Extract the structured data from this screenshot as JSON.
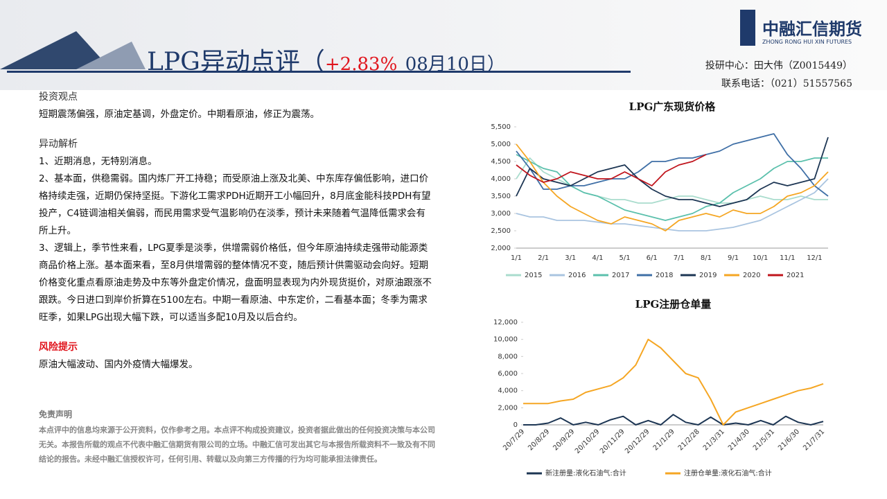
{
  "header": {
    "title": "LPG异动点评（",
    "change": "+2.83%",
    "date": "08月10日）",
    "logo_name": "中融汇信期货",
    "logo_sub": "ZHONG RONG HUI XIN FUTURES",
    "contact_1": "投研中心：田大伟（Z0015449）",
    "contact_2": "联系电话：（021）51557565"
  },
  "sections": [
    {
      "heading": "投资观点",
      "paragraphs": [
        "短期震荡偏强，原油定基调，外盘定价。中期看原油，修正为震荡。"
      ]
    },
    {
      "heading": "异动解析",
      "paragraphs": [
        "1、近期消息，无特别消息。",
        "2、基本面，供稳需弱。国内炼厂开工持稳；而受原油上涨及北美、中东库存偏低影响，进口价格持续走强，近期仍保持坚挺。下游化工需求PDH近期开工小幅回升，8月底金能科技PDH有望投产，C4链调油相关偏弱，而民用需求受气温影响仍在淡季，预计未来随着气温降低需求会有所上升。",
        "3、逻辑上，季节性来看，LPG夏季是淡季，供增需弱价格低，但今年原油持续走强带动能源类商品价格上涨。基本面来看，至8月供增需弱的整体情况不变，随后预计供需驱动会向好。短期价格变化重点看原油走势及中东等外盘定价情况，盘面明显表现为内外现货挺价，对原油跟涨不跟跌。今日进口到岸价折算在5100左右。中期一看原油、中东定价，二看基本面；冬季为需求旺季，如果LPG出现大幅下跌，可以适当多配10月及以后合约。"
      ]
    },
    {
      "heading": "风险提示",
      "paragraphs": [
        "原油大幅波动、国内外疫情大幅爆发。"
      ]
    }
  ],
  "disclaimer": {
    "heading": "免责声明",
    "text": "本点评中的信息均来源于公开资料，仅作参考之用。本点评不构成投资建议，投资者据此做出的任何投资决策与本公司无关。本报告所载的观点不代表中融汇信期货有限公司的立场。中融汇信可发出其它与本报告所载资料不一致及有不同结论的报告。未经中融汇信授权许可，任何引用、转载以及向第三方传播的行为均可能承担法律责任。"
  },
  "chart_data": [
    {
      "type": "line",
      "title": "LPG广东现货价格",
      "categories": [
        "1/1",
        null,
        "2/1",
        null,
        "3/1",
        null,
        "4/1",
        null,
        "5/1",
        null,
        "6/1",
        null,
        "7/1",
        null,
        "8/1",
        null,
        "9/1",
        null,
        "10/1",
        null,
        "11/1",
        null,
        "12/1",
        null
      ],
      "ylim": [
        2000,
        5500
      ],
      "yticks": [
        {
          "value": 2000,
          "label": "2,000"
        },
        {
          "value": 2500,
          "label": "2,500"
        },
        {
          "value": 3000,
          "label": "3,000"
        },
        {
          "value": 3500,
          "label": "3,500"
        },
        {
          "value": 4000,
          "label": "4,000"
        },
        {
          "value": 4500,
          "label": "4,500"
        },
        {
          "value": 5000,
          "label": "5,000"
        },
        {
          "value": 5500,
          "label": "5,500"
        }
      ],
      "grid": false,
      "series": [
        {
          "name": "2015",
          "color": "#a9dccd",
          "values": [
            4000,
            4600,
            4200,
            4000,
            3800,
            3600,
            3500,
            3400,
            3400,
            3300,
            3300,
            3400,
            3500,
            3500,
            3400,
            3300,
            3300,
            3400,
            3500,
            3400,
            3400,
            3500,
            3400,
            3400
          ]
        },
        {
          "name": "2016",
          "color": "#a9c4e0",
          "values": [
            3000,
            2900,
            2900,
            2800,
            2800,
            2800,
            2750,
            2700,
            2700,
            2650,
            2600,
            2550,
            2500,
            2500,
            2500,
            2550,
            2600,
            2700,
            2800,
            3000,
            3200,
            3400,
            3600,
            4000
          ]
        },
        {
          "name": "2017",
          "color": "#5bc0ac",
          "values": [
            4700,
            4500,
            4300,
            4200,
            3800,
            3600,
            3500,
            3300,
            3100,
            3000,
            2900,
            2800,
            2900,
            3000,
            3200,
            3300,
            3600,
            3800,
            4000,
            4300,
            4500,
            4500,
            4600,
            4600
          ]
        },
        {
          "name": "2018",
          "color": "#3f6fa6",
          "values": [
            4800,
            4300,
            3700,
            3700,
            3800,
            3800,
            3900,
            4000,
            4000,
            4200,
            4500,
            4500,
            4600,
            4600,
            4700,
            4800,
            5000,
            5100,
            5200,
            5300,
            4700,
            4300,
            3800,
            3500
          ]
        },
        {
          "name": "2019",
          "color": "#1c3553",
          "values": [
            3500,
            4300,
            4000,
            3900,
            3800,
            4000,
            4200,
            4300,
            4400,
            4000,
            3700,
            3500,
            3400,
            3400,
            3300,
            3200,
            3300,
            3400,
            3700,
            3900,
            3800,
            3900,
            4000,
            5200
          ]
        },
        {
          "name": "2020",
          "color": "#f5a623",
          "values": [
            5000,
            4500,
            3900,
            3500,
            3200,
            3000,
            2800,
            2700,
            2900,
            2800,
            2700,
            2500,
            2800,
            2900,
            3000,
            2900,
            3100,
            3000,
            3000,
            3200,
            3500,
            3600,
            3800,
            4200
          ]
        },
        {
          "name": "2021",
          "color": "#c0141c",
          "values": [
            4400,
            4100,
            3900,
            4000,
            4200,
            4100,
            4000,
            4000,
            4200,
            4000,
            3800,
            4200,
            4400,
            4500,
            4700,
            null,
            null,
            null,
            null,
            null,
            null,
            null,
            null,
            null
          ]
        }
      ]
    },
    {
      "type": "line",
      "title": "LPG注册仓单量",
      "categories": [
        "20/7/29",
        null,
        "20/8/29",
        null,
        "20/9/29",
        null,
        "20/10/29",
        null,
        "20/11/29",
        null,
        "20/12/29",
        null,
        "21/1/29",
        null,
        "21/2/28",
        null,
        "21/3/31",
        null,
        "21/4/30",
        null,
        "21/5/31",
        null,
        "21/6/30",
        null,
        "21/7/31"
      ],
      "ylim": [
        0,
        12000
      ],
      "yticks": [
        0,
        {
          "value": 2000,
          "label": "2,000"
        },
        {
          "value": 4000,
          "label": "4,000"
        },
        {
          "value": 6000,
          "label": "6,000"
        },
        {
          "value": 8000,
          "label": "8,000"
        },
        {
          "value": 10000,
          "label": "10,000"
        },
        {
          "value": 12000,
          "label": "12,000"
        }
      ],
      "grid": false,
      "series": [
        {
          "name": "新注册量:液化石油气:合计",
          "color": "#1c3553",
          "values": [
            0,
            0,
            200,
            800,
            0,
            300,
            0,
            600,
            1000,
            0,
            500,
            0,
            1200,
            300,
            0,
            900,
            0,
            200,
            0,
            500,
            0,
            1000,
            300,
            0,
            400
          ]
        },
        {
          "name": "注册仓单量:液化石油气:合计",
          "color": "#f5a623",
          "values": [
            2500,
            2500,
            2500,
            2800,
            3000,
            3800,
            4200,
            4600,
            5500,
            7000,
            10000,
            9000,
            7500,
            6000,
            5500,
            3000,
            0,
            1500,
            2000,
            2500,
            3000,
            3500,
            4000,
            4300,
            4800
          ]
        }
      ]
    }
  ]
}
